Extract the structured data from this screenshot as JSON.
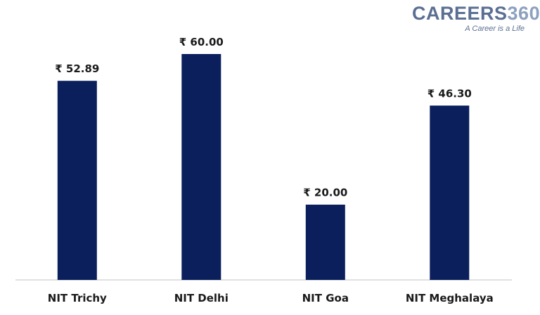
{
  "logo": {
    "brand_prefix": "CAREERS",
    "brand_suffix": "360",
    "tagline": "A Career is a Life"
  },
  "colors": {
    "bar": "#0a1f5c",
    "axis": "#c0c0c0",
    "text": "#1a1a1a"
  },
  "chart_data": {
    "type": "bar",
    "categories": [
      "NIT Trichy",
      "NIT Delhi",
      "NIT Goa",
      "NIT Meghalaya"
    ],
    "values": [
      52.89,
      60.0,
      20.0,
      46.3
    ],
    "value_labels": [
      "₹ 52.89",
      "₹ 60.00",
      "₹ 20.00",
      "₹ 46.30"
    ],
    "title": "",
    "xlabel": "",
    "ylabel": "",
    "ylim": [
      0,
      60
    ],
    "grid": false,
    "legend": "none"
  }
}
